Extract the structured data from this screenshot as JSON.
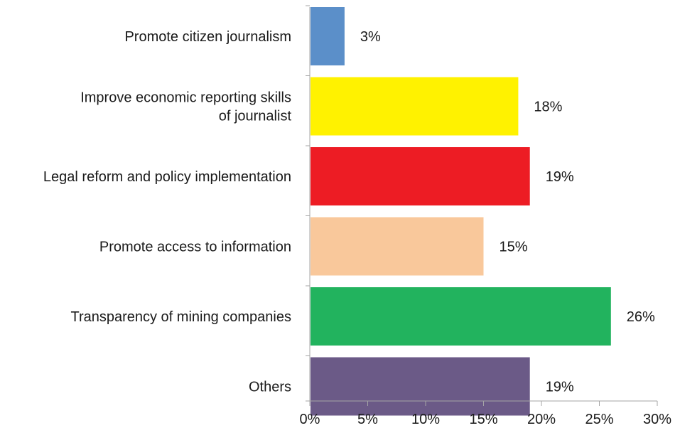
{
  "chart_data": {
    "type": "bar",
    "orientation": "horizontal",
    "title": "",
    "xlabel": "",
    "ylabel": "",
    "xlim": [
      0,
      30
    ],
    "x_ticks": [
      {
        "value": 0,
        "label": "0%"
      },
      {
        "value": 5,
        "label": "5%"
      },
      {
        "value": 10,
        "label": "10%"
      },
      {
        "value": 15,
        "label": "15%"
      },
      {
        "value": 20,
        "label": "20%"
      },
      {
        "value": 25,
        "label": "25%"
      },
      {
        "value": 30,
        "label": "30%"
      }
    ],
    "grid": false,
    "legend": "none",
    "categories": [
      {
        "lines": [
          "Promote citizen journalism"
        ]
      },
      {
        "lines": [
          "Improve economic reporting skills",
          "of journalist"
        ]
      },
      {
        "lines": [
          "Legal reform and policy implementation"
        ]
      },
      {
        "lines": [
          "Promote access to information"
        ]
      },
      {
        "lines": [
          "Transparency of mining companies"
        ]
      },
      {
        "lines": [
          "Others"
        ]
      }
    ],
    "values": [
      3,
      18,
      19,
      15,
      26,
      19
    ],
    "data_labels": [
      "3%",
      "18%",
      "19%",
      "15%",
      "26%",
      "19%"
    ],
    "colors": [
      "#5b8fc9",
      "#fff200",
      "#ed1c24",
      "#f9c89b",
      "#22b35e",
      "#6b5a87"
    ]
  }
}
